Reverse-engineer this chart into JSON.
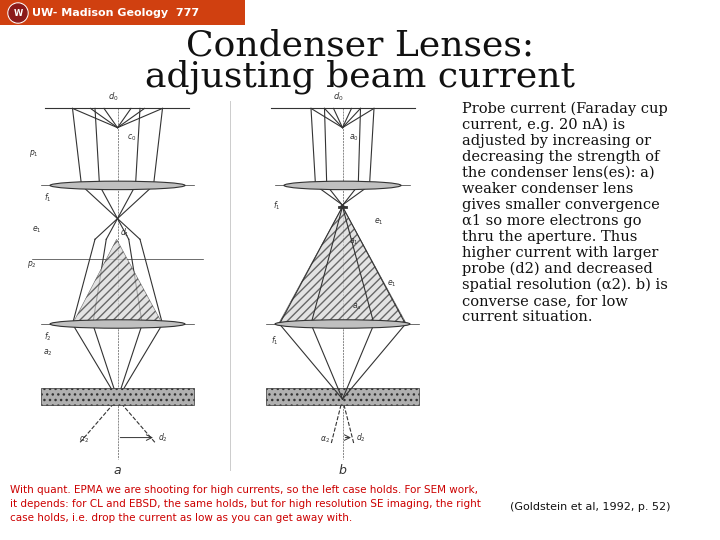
{
  "background_color": "#ffffff",
  "header_bg_color": "#d04010",
  "header_text": "UW- Madison Geology  777",
  "header_text_color": "#ffffff",
  "header_font_size": 8,
  "title_line1": "Condenser Lenses:",
  "title_line2": "adjusting beam current",
  "title_font_size": 26,
  "title_color": "#111111",
  "body_text_lines": [
    "Probe current (Faraday cup",
    "current, e.g. 20 nA) is",
    "adjusted by increasing or",
    "decreasing the strength of",
    "the condenser lens(es): a)",
    "weaker condenser lens",
    "gives smaller convergence",
    "α1 so more electrons go",
    "thru the aperture. Thus",
    "higher current with larger",
    "probe (d2) and decreased",
    "spatial resolution (α2). b) is",
    "converse case, for low",
    "current situation."
  ],
  "body_font_size": 10.5,
  "body_color": "#111111",
  "footer_text": "With quant. EPMA we are shooting for high currents, so the left case holds. For SEM work,\nit depends: for CL and EBSD, the same holds, but for high resolution SE imaging, the right\ncase holds, i.e. drop the current as low as you can get away with.",
  "footer_color": "#cc0000",
  "footer_font_size": 7.5,
  "citation_text": "(Goldstein et al, 1992, p. 52)",
  "citation_color": "#111111",
  "citation_font_size": 8
}
